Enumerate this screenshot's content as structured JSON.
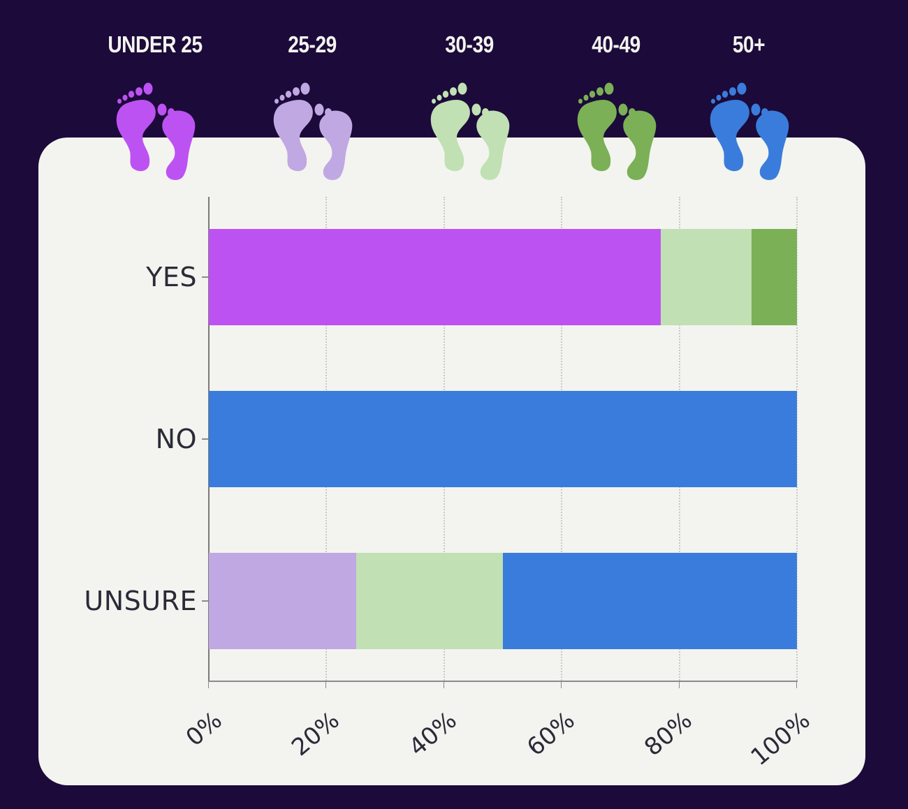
{
  "chart_data": {
    "type": "bar",
    "orientation": "horizontal",
    "stacked": true,
    "normalized": true,
    "title": "",
    "xlabel": "",
    "ylabel": "",
    "xlim": [
      0,
      100
    ],
    "x_ticks": [
      "0%",
      "20%",
      "40%",
      "60%",
      "80%",
      "100%"
    ],
    "categories": [
      "YES",
      "NO",
      "UNSURE"
    ],
    "legend_position": "top",
    "grid": "vertical dotted",
    "series": [
      {
        "name": "UNDER 25",
        "color": "#bd52f2",
        "values": [
          76.9,
          0,
          0
        ]
      },
      {
        "name": "25-29",
        "color": "#c0a8e2",
        "values": [
          0,
          0,
          25
        ]
      },
      {
        "name": "30-39",
        "color": "#c1e0b4",
        "values": [
          15.4,
          0,
          25
        ]
      },
      {
        "name": "40-49",
        "color": "#7bb056",
        "values": [
          7.7,
          0,
          0
        ]
      },
      {
        "name": "50+",
        "color": "#3a7cdb",
        "values": [
          0,
          100,
          50
        ]
      }
    ]
  },
  "legend": [
    {
      "label": "UNDER 25",
      "icon": "footprints-icon",
      "color": "#bd52f2"
    },
    {
      "label": "25-29",
      "icon": "footprints-icon",
      "color": "#c0a8e2"
    },
    {
      "label": "30-39",
      "icon": "footprints-icon",
      "color": "#c1e0b4"
    },
    {
      "label": "40-49",
      "icon": "footprints-icon",
      "color": "#7bb056"
    },
    {
      "label": "50+",
      "icon": "footprints-icon",
      "color": "#3a7cdb"
    }
  ],
  "y_labels": [
    "YES",
    "NO",
    "UNSURE"
  ],
  "x_labels": [
    "0%",
    "20%",
    "40%",
    "60%",
    "80%",
    "100%"
  ],
  "colors": {
    "background": "#1c0a3a",
    "card": "#f3f4ef",
    "text": "#2b2a38"
  }
}
